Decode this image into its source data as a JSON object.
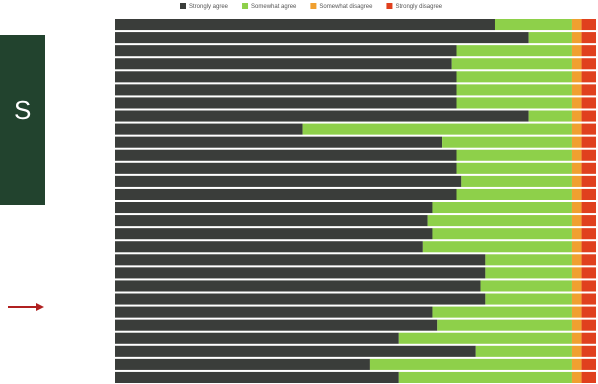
{
  "side_label": "S",
  "chart_data": {
    "type": "stacked-barh",
    "categories": [
      null,
      null,
      null,
      null,
      null,
      null,
      null,
      null,
      null,
      null,
      null,
      null,
      null,
      null,
      null,
      null,
      null,
      null,
      null,
      null,
      null,
      null,
      null,
      null,
      null,
      null,
      null,
      null
    ],
    "series": [
      {
        "name": "Strongly agree",
        "color": "#3a3d3a",
        "values": [
          79,
          86,
          71,
          70,
          71,
          71,
          71,
          86,
          39,
          68,
          71,
          71,
          72,
          71,
          66,
          65,
          66,
          64,
          77,
          77,
          76,
          77,
          66,
          67,
          59,
          75,
          53,
          59
        ]
      },
      {
        "name": "Somewhat agree",
        "color": "#8ed04a",
        "values": [
          16,
          9,
          24,
          25,
          24,
          24,
          24,
          9,
          56,
          27,
          24,
          24,
          23,
          24,
          29,
          30,
          29,
          31,
          18,
          18,
          19,
          18,
          29,
          28,
          36,
          20,
          42,
          36
        ]
      },
      {
        "name": "Somewhat disagree",
        "color": "#f0a030",
        "values": [
          2,
          2,
          2,
          2,
          2,
          2,
          2,
          2,
          2,
          2,
          2,
          2,
          2,
          2,
          2,
          2,
          2,
          2,
          2,
          2,
          2,
          2,
          2,
          2,
          2,
          2,
          2,
          2
        ]
      },
      {
        "name": "Strongly disagree",
        "color": "#e0401e",
        "values": [
          3,
          3,
          3,
          3,
          3,
          3,
          3,
          3,
          3,
          3,
          3,
          3,
          3,
          3,
          3,
          3,
          3,
          3,
          3,
          3,
          3,
          3,
          3,
          3,
          3,
          3,
          3,
          3
        ]
      }
    ],
    "xlim": [
      0,
      100
    ]
  }
}
